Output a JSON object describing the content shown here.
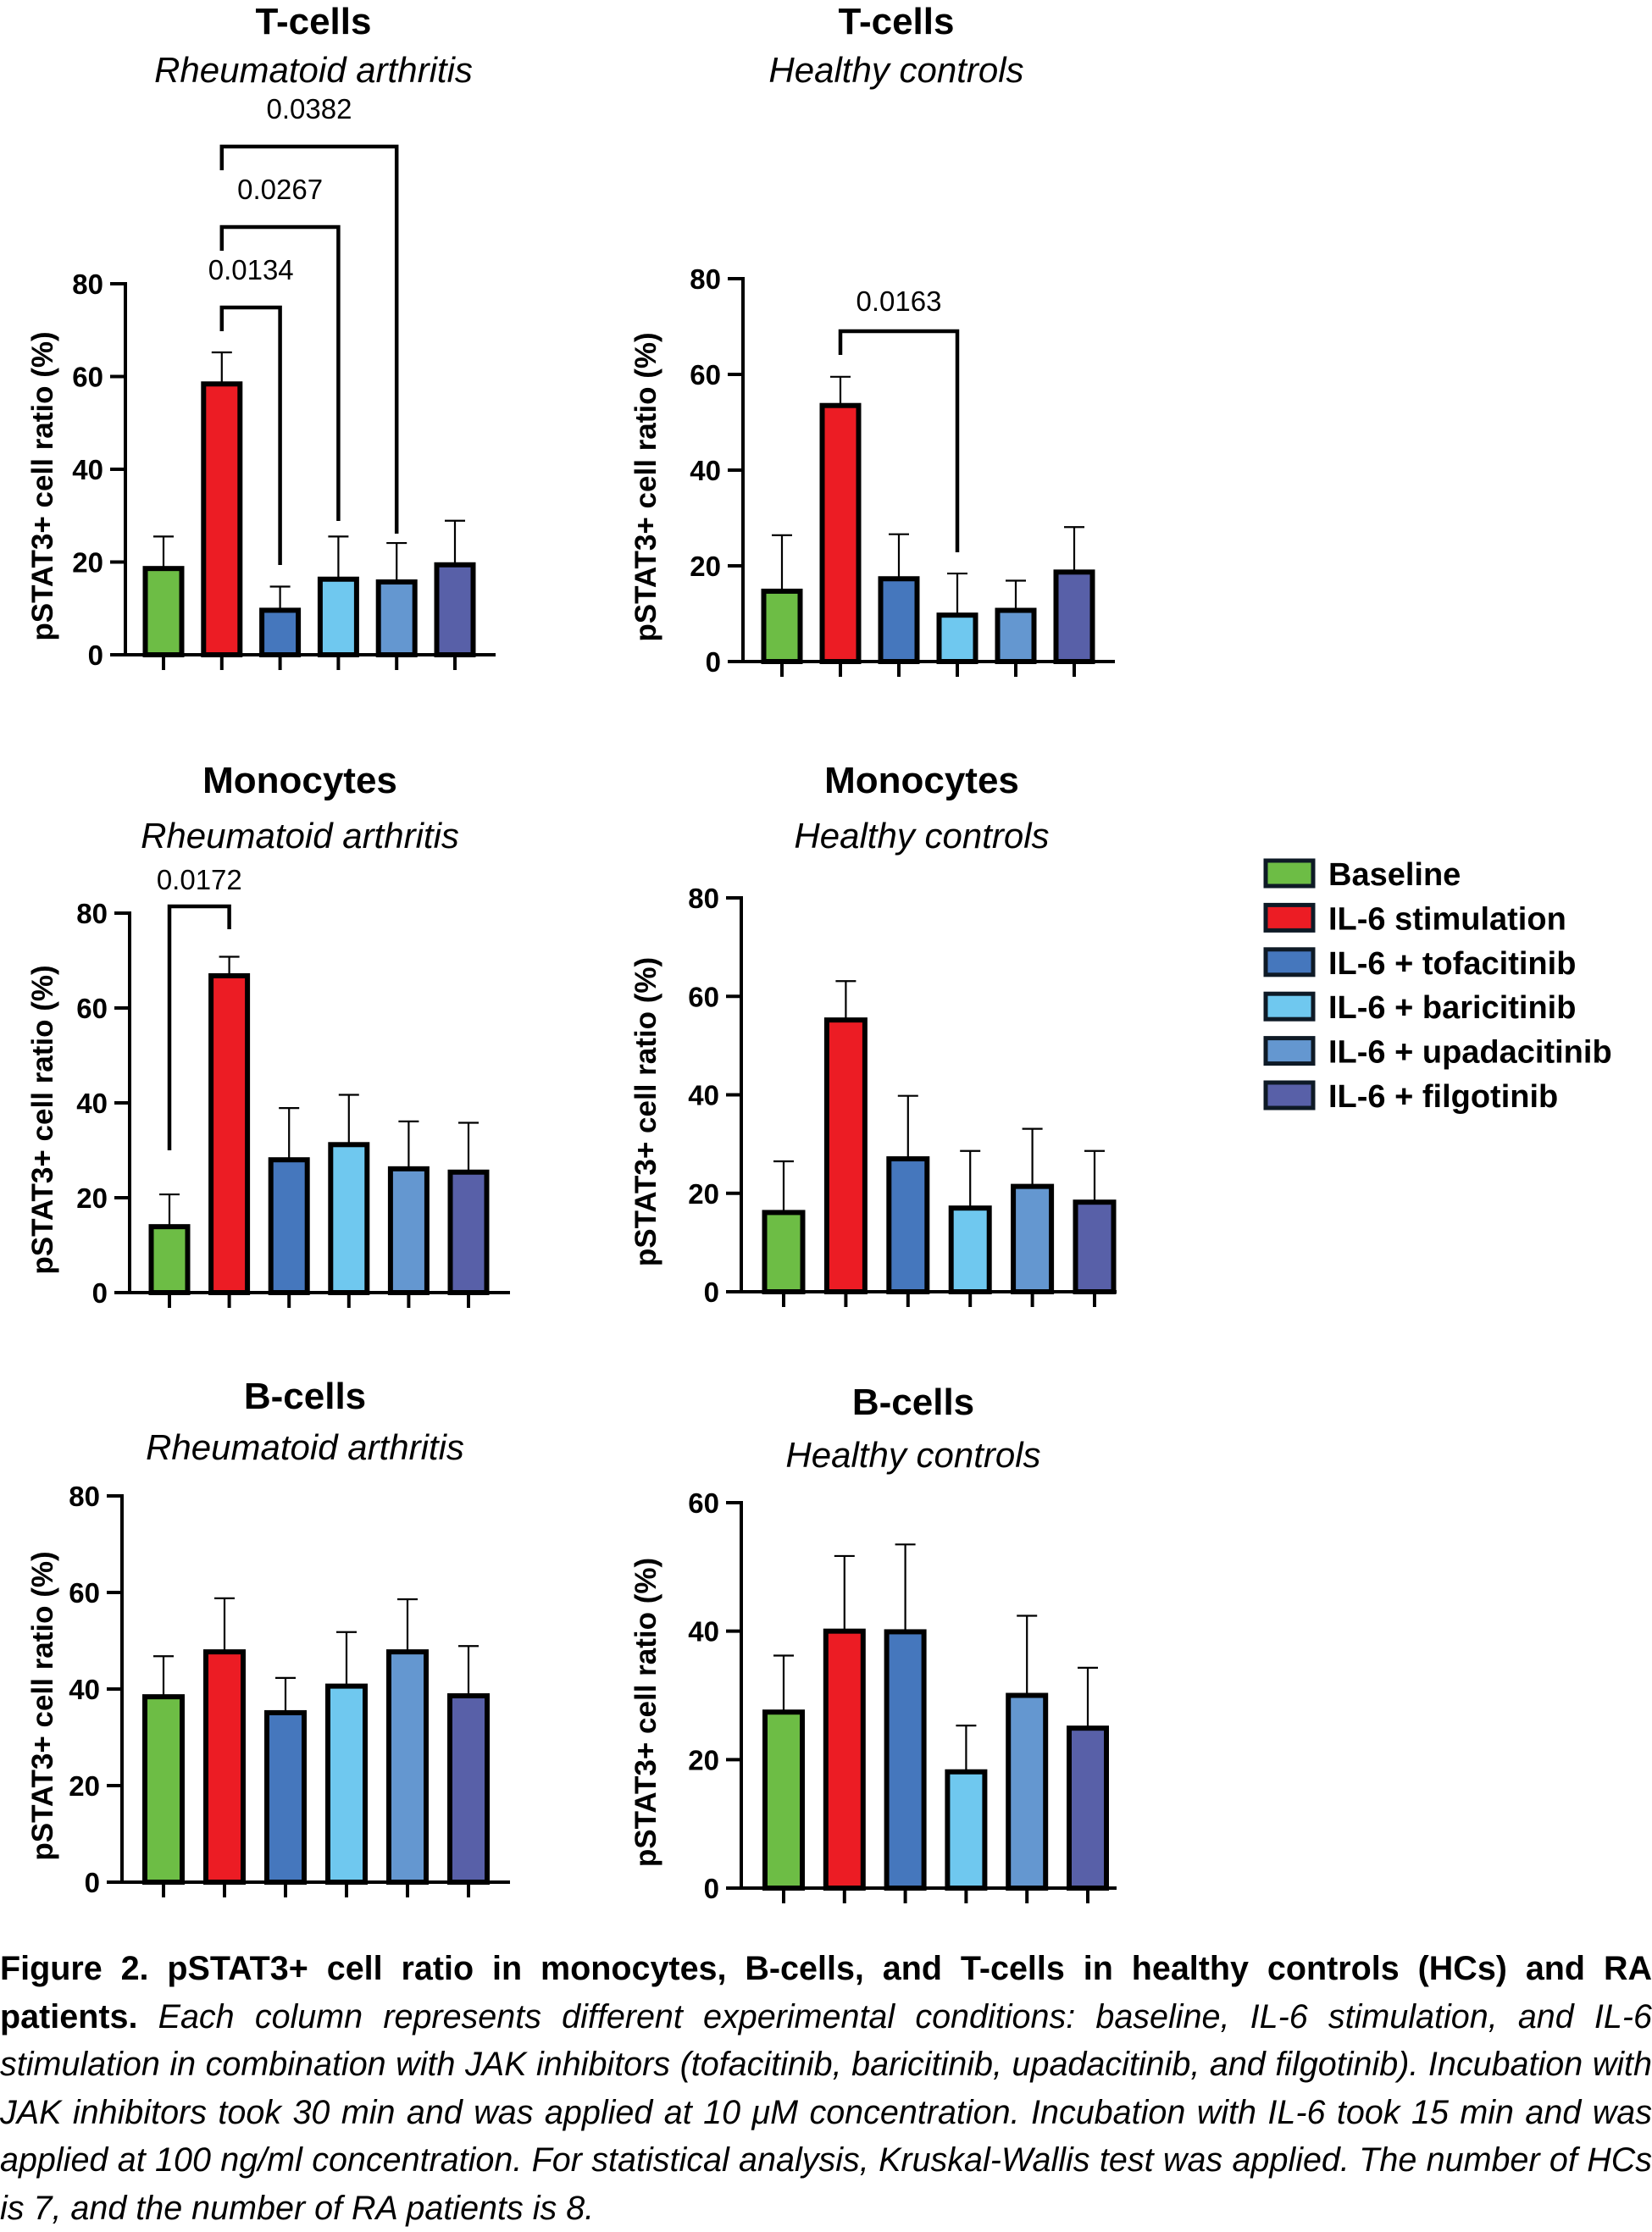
{
  "chart_data": [
    {
      "type": "bar",
      "title": "T-cells",
      "subtitle": "Rheumatoid arthritis",
      "xlabel": "",
      "ylabel": "pSTAT3+ cell ratio (%)",
      "ylim": [
        0,
        80
      ],
      "yticks": [
        0,
        20,
        40,
        60,
        80
      ],
      "categories": [
        "Baseline",
        "IL-6 stimulation",
        "IL-6 + tofacitinib",
        "IL-6 + baricitinib",
        "IL-6 + upadacitinib",
        "IL-6 + filgotinib"
      ],
      "values": [
        18.6,
        58.4,
        9.6,
        16.3,
        15.7,
        19.4
      ],
      "error_upper": [
        25.5,
        65.2,
        14.7,
        25.5,
        24.1,
        28.9
      ],
      "significance": [
        {
          "from": 1,
          "to": 2,
          "label": "0.0134"
        },
        {
          "from": 1,
          "to": 3,
          "label": "0.0267"
        },
        {
          "from": 1,
          "to": 4,
          "label": "0.0382"
        }
      ]
    },
    {
      "type": "bar",
      "title": "T-cells",
      "subtitle": "Healthy controls",
      "xlabel": "",
      "ylabel": "pSTAT3+ cell ratio (%)",
      "ylim": [
        0,
        80
      ],
      "yticks": [
        0,
        20,
        40,
        60,
        80
      ],
      "categories": [
        "Baseline",
        "IL-6 stimulation",
        "IL-6 + tofacitinib",
        "IL-6 + baricitinib",
        "IL-6 + upadacitinib",
        "IL-6 + filgotinib"
      ],
      "values": [
        14.7,
        53.5,
        17.3,
        9.7,
        10.7,
        18.7
      ],
      "error_upper": [
        26.4,
        59.5,
        26.6,
        18.4,
        16.9,
        28.1
      ],
      "significance": [
        {
          "from": 1,
          "to": 3,
          "label": "0.0163"
        }
      ]
    },
    {
      "type": "bar",
      "title": "Monocytes",
      "subtitle": "Rheumatoid arthritis",
      "xlabel": "",
      "ylabel": "pSTAT3+ cell ratio (%)",
      "ylim": [
        0,
        80
      ],
      "yticks": [
        0,
        20,
        40,
        60,
        80
      ],
      "categories": [
        "Baseline",
        "IL-6 stimulation",
        "IL-6 + tofacitinib",
        "IL-6 + baricitinib",
        "IL-6 + upadacitinib",
        "IL-6 + filgotinib"
      ],
      "values": [
        13.9,
        66.8,
        28.0,
        31.2,
        26.1,
        25.4
      ],
      "error_upper": [
        20.7,
        70.8,
        38.9,
        41.7,
        36.1,
        35.8
      ],
      "significance": [
        {
          "from": 0,
          "to": 1,
          "label": "0.0172"
        }
      ]
    },
    {
      "type": "bar",
      "title": "Monocytes",
      "subtitle": "Healthy controls",
      "xlabel": "",
      "ylabel": "pSTAT3+ cell ratio (%)",
      "ylim": [
        0,
        80
      ],
      "yticks": [
        0,
        20,
        40,
        60,
        80
      ],
      "categories": [
        "Baseline",
        "IL-6 stimulation",
        "IL-6 + tofacitinib",
        "IL-6 + baricitinib",
        "IL-6 + upadacitinib",
        "IL-6 + filgotinib"
      ],
      "values": [
        16.1,
        55.2,
        27.0,
        17.0,
        21.4,
        18.2
      ],
      "error_upper": [
        26.5,
        63.1,
        39.8,
        28.6,
        33.1,
        28.6
      ],
      "significance": []
    },
    {
      "type": "bar",
      "title": "B-cells",
      "subtitle": "Rheumatoid arthritis",
      "xlabel": "",
      "ylabel": "pSTAT3+ cell ratio (%)",
      "ylim": [
        0,
        80
      ],
      "yticks": [
        0,
        20,
        40,
        60,
        80
      ],
      "categories": [
        "Baseline",
        "IL-6 stimulation",
        "IL-6 + tofacitinib",
        "IL-6 + baricitinib",
        "IL-6 + upadacitinib",
        "IL-6 + filgotinib"
      ],
      "values": [
        38.4,
        47.7,
        35.1,
        40.6,
        47.7,
        38.6
      ],
      "error_upper": [
        46.8,
        58.8,
        42.3,
        51.8,
        58.6,
        48.9
      ],
      "significance": []
    },
    {
      "type": "bar",
      "title": "B-cells",
      "subtitle": "Healthy controls",
      "xlabel": "",
      "ylabel": "pSTAT3+ cell ratio (%)",
      "ylim": [
        0,
        60
      ],
      "yticks": [
        0,
        20,
        40,
        60
      ],
      "categories": [
        "Baseline",
        "IL-6 stimulation",
        "IL-6 + tofacitinib",
        "IL-6 + baricitinib",
        "IL-6 + upadacitinib",
        "IL-6 + filgotinib"
      ],
      "values": [
        27.4,
        40.0,
        39.9,
        18.1,
        30.0,
        24.9
      ],
      "error_upper": [
        36.2,
        51.7,
        53.5,
        25.3,
        42.4,
        34.3
      ],
      "significance": []
    }
  ],
  "legend": {
    "placement": "right",
    "items": [
      {
        "label": "Baseline",
        "color": "#6dbd45"
      },
      {
        "label": "IL-6 stimulation",
        "color": "#ec1c24"
      },
      {
        "label": "IL-6 + tofacitinib",
        "color": "#4577bd"
      },
      {
        "label": "IL-6 + baricitinib",
        "color": "#6fc8ef"
      },
      {
        "label": "IL-6 + upadacitinib",
        "color": "#6497d0"
      },
      {
        "label": "IL-6 + filgotinib",
        "color": "#5860a8"
      }
    ]
  },
  "caption": {
    "bold": "Figure 2. pSTAT3+ cell ratio in monocytes, B-cells, and T-cells in healthy controls (HCs) and RA patients.",
    "italic": "Each column represents different experimental conditions: baseline, IL-6 stimulation, and IL-6 stimulation in combination with JAK inhibitors (tofacitinib, baricitinib, upadacitinib, and filgotinib). Incubation with JAK inhibitors took 30 min and was applied at 10 μM concentration. Incubation with IL-6 took 15 min and was applied at 100 ng/ml concentration. For statistical analysis, Kruskal-Wallis test was applied. The number of HCs is 7, and the number of RA patients is 8."
  }
}
